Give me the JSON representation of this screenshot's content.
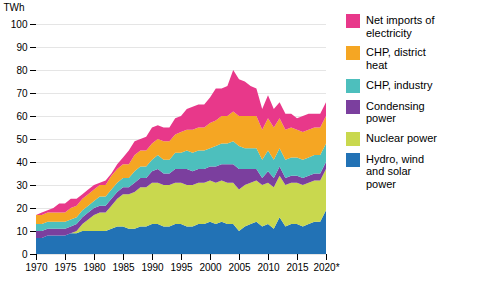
{
  "chart_data": {
    "type": "area",
    "stacked": true,
    "ylabel": "TWh",
    "x": [
      1970,
      1971,
      1972,
      1973,
      1974,
      1975,
      1976,
      1977,
      1978,
      1979,
      1980,
      1981,
      1982,
      1983,
      1984,
      1985,
      1986,
      1987,
      1988,
      1989,
      1990,
      1991,
      1992,
      1993,
      1994,
      1995,
      1996,
      1997,
      1998,
      1999,
      2000,
      2001,
      2002,
      2003,
      2004,
      2005,
      2006,
      2007,
      2008,
      2009,
      2010,
      2011,
      2012,
      2013,
      2014,
      2015,
      2016,
      2017,
      2018,
      2019,
      2020
    ],
    "series": [
      {
        "name": "Hydro, wind\nand solar\npower",
        "color": "#2272b5",
        "values": [
          7,
          7,
          8,
          8,
          8,
          8,
          9,
          9,
          10,
          10,
          10,
          10,
          10,
          11,
          12,
          12,
          11,
          11,
          12,
          12,
          13,
          13,
          12,
          12,
          13,
          13,
          12,
          12,
          13,
          13,
          14,
          13,
          14,
          13,
          13,
          10,
          12,
          13,
          14,
          12,
          13,
          11,
          16,
          12,
          13,
          13,
          12,
          13,
          14,
          14,
          19
        ]
      },
      {
        "name": "Nuclear power",
        "color": "#c9d84e",
        "values": [
          0,
          0,
          0,
          0,
          0,
          0,
          0,
          1,
          3,
          5,
          7,
          8,
          8,
          10,
          12,
          14,
          15,
          16,
          17,
          17,
          18,
          18,
          18,
          18,
          18,
          18,
          18,
          18,
          18,
          18,
          18,
          18,
          18,
          18,
          18,
          18,
          18,
          18,
          18,
          18,
          18,
          18,
          18,
          18,
          18,
          18,
          18,
          18,
          18,
          18,
          18
        ]
      },
      {
        "name": "Condensing\npower",
        "color": "#7b3f9e",
        "values": [
          3,
          3,
          3,
          3,
          3,
          3,
          3,
          3,
          3,
          3,
          3,
          3,
          3,
          3,
          3,
          3,
          3,
          4,
          4,
          4,
          5,
          6,
          5,
          5,
          6,
          6,
          7,
          6,
          6,
          6,
          6,
          7,
          7,
          8,
          8,
          9,
          7,
          6,
          5,
          3,
          5,
          4,
          4,
          3,
          3,
          3,
          3,
          3,
          3,
          3,
          3
        ]
      },
      {
        "name": "CHP, industry",
        "color": "#4dbfbd",
        "values": [
          3,
          3,
          3,
          3,
          3,
          3,
          3,
          3,
          3,
          3,
          3,
          4,
          4,
          4,
          4,
          4,
          4,
          5,
          5,
          5,
          5,
          6,
          6,
          6,
          7,
          7,
          8,
          8,
          8,
          8,
          8,
          9,
          9,
          9,
          10,
          10,
          9,
          9,
          9,
          8,
          9,
          8,
          8,
          8,
          8,
          8,
          8,
          8,
          8,
          8,
          8
        ]
      },
      {
        "name": "CHP, district\nheat",
        "color": "#f5a623",
        "values": [
          4,
          4,
          4,
          4,
          4,
          4,
          5,
          5,
          5,
          5,
          5,
          5,
          5,
          6,
          6,
          6,
          6,
          7,
          7,
          7,
          7,
          7,
          8,
          8,
          8,
          9,
          9,
          10,
          10,
          10,
          11,
          11,
          12,
          12,
          13,
          13,
          14,
          14,
          14,
          13,
          14,
          14,
          13,
          13,
          13,
          12,
          12,
          12,
          12,
          12,
          12
        ]
      },
      {
        "name": "Net imports of\nelectricity",
        "color": "#e8388a",
        "values": [
          0,
          1,
          1,
          2,
          4,
          4,
          4,
          3,
          2,
          2,
          2,
          1,
          2,
          1,
          2,
          3,
          6,
          6,
          5,
          6,
          7,
          6,
          6,
          6,
          7,
          7,
          9,
          10,
          10,
          10,
          11,
          14,
          12,
          13,
          18,
          16,
          15,
          13,
          12,
          9,
          10,
          8,
          7,
          7,
          6,
          5,
          7,
          7,
          6,
          6,
          6
        ]
      }
    ],
    "xlim": [
      1970,
      2020
    ],
    "xticks": [
      1970,
      1975,
      1980,
      1985,
      1990,
      1995,
      2000,
      2005,
      2010,
      2015,
      {
        "value": 2020,
        "label": "2020*"
      }
    ],
    "ylim": [
      0,
      100
    ],
    "yticks": [
      0,
      10,
      20,
      30,
      40,
      50,
      60,
      70,
      80,
      90,
      100
    ],
    "grid": true,
    "legend": "right"
  }
}
